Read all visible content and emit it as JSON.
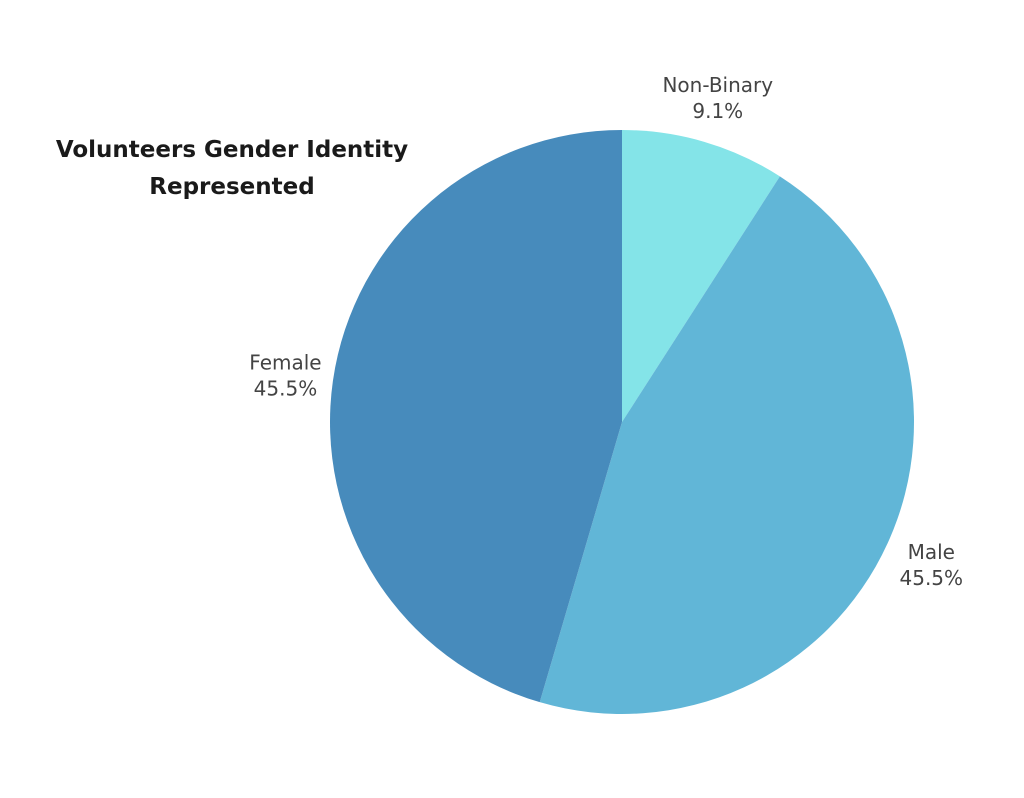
{
  "chart_data": {
    "type": "pie",
    "title_lines": [
      "Volunteers Gender Identity",
      "Represented"
    ],
    "slices": [
      {
        "label": "Non-Binary",
        "value": 9.1,
        "display": "9.1%",
        "color": "#84e4e8"
      },
      {
        "label": "Male",
        "value": 45.5,
        "display": "45.5%",
        "color": "#61b6d7"
      },
      {
        "label": "Female",
        "value": 45.5,
        "display": "45.5%",
        "color": "#478bbc"
      }
    ],
    "start_angle": "12 o'clock",
    "direction": "clockwise",
    "legend": "none"
  }
}
